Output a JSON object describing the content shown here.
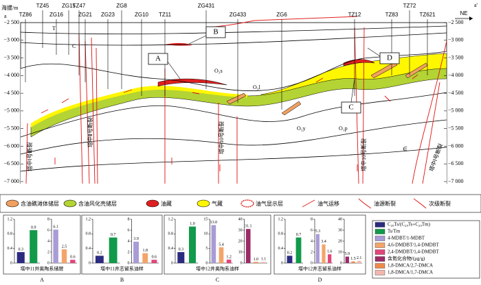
{
  "axis": {
    "label": "海拔/m",
    "ticks": [
      {
        "value": -2500,
        "label": "−2 500"
      },
      {
        "value": -3000,
        "label": "−3 000"
      },
      {
        "value": -3500,
        "label": "−3 500"
      },
      {
        "value": -4000,
        "label": "−4 000"
      },
      {
        "value": -4500,
        "label": "−4 500"
      },
      {
        "value": -5000,
        "label": "−5 000"
      },
      {
        "value": -5500,
        "label": "−5 500"
      },
      {
        "value": -6000,
        "label": "−6 000"
      },
      {
        "value": -6500,
        "label": "−6 500"
      },
      {
        "value": -7000,
        "label": "−7 000"
      }
    ]
  },
  "ends": {
    "left": "a",
    "right": "a'",
    "direction": "NE"
  },
  "wells": [
    {
      "name": "TZ86",
      "color": "#000000"
    },
    {
      "name": "TZ45",
      "color": "#000000"
    },
    {
      "name": "ZG16",
      "color": "#000000"
    },
    {
      "name": "ZG15",
      "color": "#000000"
    },
    {
      "name": "TZ47",
      "color": "#e0307a"
    },
    {
      "name": "ZG21",
      "color": "#000000"
    },
    {
      "name": "ZG23",
      "color": "#000000"
    },
    {
      "name": "ZG8",
      "color": "#000000"
    },
    {
      "name": "ZG10",
      "color": "#000000"
    },
    {
      "name": "TZ11",
      "color": "#e0307a"
    },
    {
      "name": "ZG431",
      "color": "#000000"
    },
    {
      "name": "ZG433",
      "color": "#000000"
    },
    {
      "name": "ZG6",
      "color": "#e0307a"
    },
    {
      "name": "TZ12",
      "color": "#e0307a"
    },
    {
      "name": "TZ83",
      "color": "#e0307a"
    },
    {
      "name": "TZ72",
      "color": "#000000"
    },
    {
      "name": "TZ621",
      "color": "#000000"
    }
  ],
  "formations": [
    "T",
    "C",
    "O₃s",
    "O₃l",
    "O₃y",
    "O₁p",
    "∈"
  ],
  "zones": [
    "A",
    "B",
    "C",
    "D"
  ],
  "faults": [
    "塔中Ⅰ号断裂",
    "塔中Ⅱ号断裂",
    "塔中10号断裂",
    "塔中10号断裂",
    "塔中Ⅰ号断裂"
  ],
  "legend": [
    "含油礁滩体储层",
    "含油风化壳储层",
    "油藏",
    "气藏",
    "油气显示层",
    "油气运移",
    "油源断裂",
    "次级断裂"
  ],
  "bar_legend": [
    {
      "name": "C₂₉Ts/(C₂₉Ts+C₂₉Tm)",
      "color": "#2b2b80"
    },
    {
      "name": "Ts/Tm",
      "color": "#119a4a"
    },
    {
      "name": "4-MDBT/1-MDBT",
      "color": "#a99bd6"
    },
    {
      "name": "4,6-DMDBT/1,4-DMDBT",
      "color": "#f4a46a"
    },
    {
      "name": "2,4-DMDBT/1,4-DMDBT",
      "color": "#e2457a"
    },
    {
      "name": "含氮化合物/(μg/g)",
      "color": "#9c2a66"
    },
    {
      "name": "1,8-DMCA/2,7-DMCA",
      "color": "#ef8a4a"
    },
    {
      "name": "1,8-DMCA/1,7-DMCA",
      "color": "#f3b7b0"
    }
  ],
  "chart_data": [
    {
      "type": "bar",
      "title": "A",
      "subtitle": "塔中11井奥陶系储层",
      "panels": [
        {
          "ylim": [
            0,
            1.2
          ],
          "yticks": [
            0,
            0.4,
            0.8,
            1.2
          ],
          "values": [
            0.3,
            0.9
          ],
          "colors": [
            "#2b2b80",
            "#119a4a"
          ]
        },
        {
          "ylim": [
            0,
            8
          ],
          "yticks": [
            0,
            2,
            4,
            6,
            8
          ],
          "values": [
            6.1,
            2.5,
            0.6
          ],
          "colors": [
            "#a99bd6",
            "#f4a46a",
            "#e2457a"
          ]
        }
      ]
    },
    {
      "type": "bar",
      "title": "B",
      "subtitle": "塔中11井志留系油样",
      "panels": [
        {
          "ylim": [
            0,
            1.2
          ],
          "yticks": [
            0,
            0.4,
            0.8,
            1.2
          ],
          "values": [
            0.2,
            0.7
          ],
          "colors": [
            "#2b2b80",
            "#119a4a"
          ]
        },
        {
          "ylim": [
            0,
            8
          ],
          "yticks": [
            0,
            2,
            4,
            6,
            8
          ],
          "values": [
            3.9,
            1.8,
            0.6
          ],
          "colors": [
            "#a99bd6",
            "#f4a46a",
            "#e2457a"
          ]
        }
      ]
    },
    {
      "type": "bar",
      "title": "C",
      "subtitle": "塔中12井奥陶系油样",
      "panels": [
        {
          "ylim": [
            0,
            1.2
          ],
          "yticks": [
            0,
            0.4,
            0.8,
            1.2
          ],
          "values": [
            0.3,
            1.0
          ],
          "value_labels": [
            "0.3",
            "1.0"
          ],
          "colors": [
            "#2b2b80",
            "#119a4a"
          ]
        },
        {
          "ylim": [
            0,
            15
          ],
          "yticks": [
            0,
            5,
            10,
            15
          ],
          "values": [
            13.0,
            5.4,
            1.2
          ],
          "value_labels": [
            "13.0",
            "5.4",
            "1.2"
          ],
          "colors": [
            "#a99bd6",
            "#f4a46a",
            "#e2457a"
          ]
        },
        {
          "ylim": [
            0,
            40
          ],
          "yticks": [
            0,
            10,
            20,
            30,
            40
          ],
          "values": [
            31.1,
            1.0,
            1.1
          ],
          "value_labels": [
            "31.1",
            "1.0",
            "1.1"
          ],
          "colors": [
            "#9c2a66",
            "#ef8a4a",
            "#f3b7b0"
          ]
        }
      ]
    },
    {
      "type": "bar",
      "title": "D",
      "subtitle": "塔中12井志留系油样",
      "panels": [
        {
          "ylim": [
            0,
            1.2
          ],
          "yticks": [
            0,
            0.4,
            0.8,
            1.2
          ],
          "values": [
            0.2,
            0.7
          ],
          "colors": [
            "#2b2b80",
            "#119a4a"
          ]
        },
        {
          "ylim": [
            0,
            8
          ],
          "yticks": [
            0,
            2,
            4,
            6,
            8
          ],
          "values": [
            5.3,
            3.4,
            1.6
          ],
          "colors": [
            "#a99bd6",
            "#f4a46a",
            "#e2457a"
          ]
        },
        {
          "ylim": [
            0,
            40
          ],
          "yticks": [
            0,
            10,
            20,
            30,
            40
          ],
          "values": [
            5.9,
            1.5,
            2.1
          ],
          "colors": [
            "#9c2a66",
            "#ef8a4a",
            "#f3b7b0"
          ]
        }
      ]
    }
  ]
}
